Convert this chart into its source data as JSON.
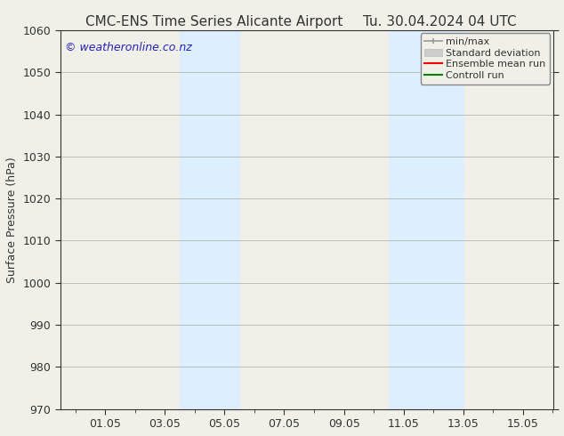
{
  "title_left": "CMC-ENS Time Series Alicante Airport",
  "title_right": "Tu. 30.04.2024 04 UTC",
  "ylabel": "Surface Pressure (hPa)",
  "ylim": [
    970,
    1060
  ],
  "yticks": [
    970,
    980,
    990,
    1000,
    1010,
    1020,
    1030,
    1040,
    1050,
    1060
  ],
  "xlim": [
    -0.5,
    16.0
  ],
  "xtick_labels": [
    "01.05",
    "03.05",
    "05.05",
    "07.05",
    "09.05",
    "11.05",
    "13.05",
    "15.05"
  ],
  "xtick_positions": [
    1,
    3,
    5,
    7,
    9,
    11,
    13,
    15
  ],
  "shaded_bands": [
    {
      "xmin": 3.5,
      "xmax": 5.5,
      "color": "#ddeeff"
    },
    {
      "xmin": 10.5,
      "xmax": 13.0,
      "color": "#ddeeff"
    }
  ],
  "watermark_text": "© weatheronline.co.nz",
  "watermark_color": "#2222bb",
  "background_color": "#f0f0e8",
  "plot_bg_color": "#f0f0e8",
  "grid_color": "#aaaaaa",
  "text_color": "#333333",
  "title_fontsize": 11,
  "axis_fontsize": 9,
  "tick_fontsize": 9,
  "watermark_fontsize": 9,
  "legend_fontsize": 8
}
